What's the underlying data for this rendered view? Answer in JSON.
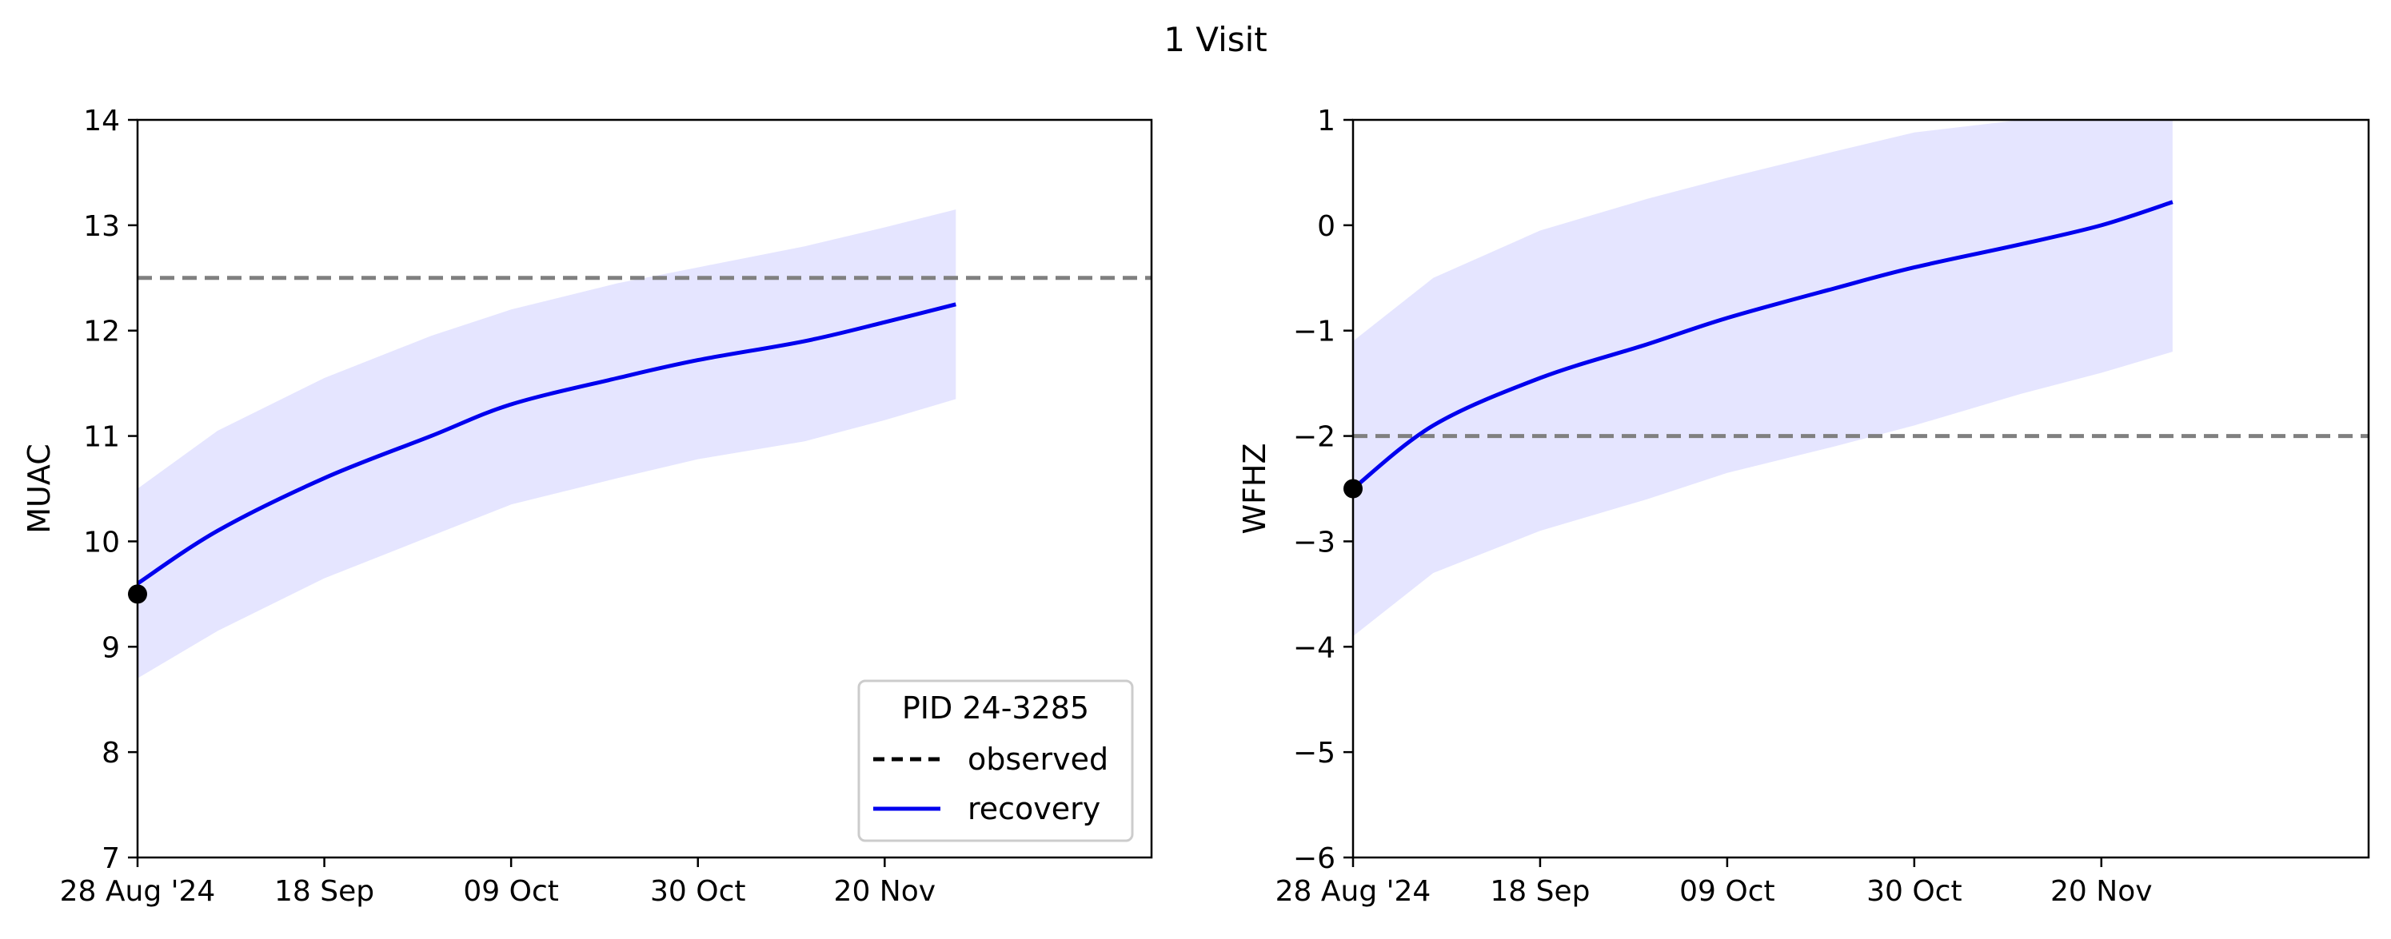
{
  "title": "1 Visit",
  "chart_data": [
    {
      "type": "line",
      "ylabel": "MUAC",
      "xlabel": "",
      "xlim": [
        "2024-08-28",
        "2024-12-20"
      ],
      "ylim": [
        7,
        14
      ],
      "xticks": [
        "2024-08-28",
        "2024-09-18",
        "2024-10-09",
        "2024-10-30",
        "2024-11-20"
      ],
      "xtick_labels": [
        "28 Aug '24",
        "18 Sep",
        "09 Oct",
        "30 Oct",
        "20 Nov"
      ],
      "yticks": [
        7,
        8,
        9,
        10,
        11,
        12,
        13,
        14
      ],
      "ytick_labels": [
        "7",
        "8",
        "9",
        "10",
        "11",
        "12",
        "13",
        "14"
      ],
      "threshold": {
        "y": 12.5,
        "style": "dashed",
        "color": "#808080"
      },
      "observed": [
        {
          "x": "2024-08-28",
          "y": 9.5
        }
      ],
      "recovery": {
        "color": "#0000ee",
        "x": [
          "2024-08-28",
          "2024-09-06",
          "2024-09-18",
          "2024-09-30",
          "2024-10-09",
          "2024-10-21",
          "2024-10-30",
          "2024-11-11",
          "2024-11-20",
          "2024-11-28"
        ],
        "y": [
          9.6,
          10.1,
          10.6,
          11.0,
          11.3,
          11.55,
          11.72,
          11.9,
          12.08,
          12.25
        ],
        "band_low": [
          8.7,
          9.15,
          9.65,
          10.05,
          10.35,
          10.6,
          10.78,
          10.95,
          11.15,
          11.35
        ],
        "band_high": [
          10.5,
          11.05,
          11.55,
          11.95,
          12.2,
          12.45,
          12.6,
          12.8,
          12.98,
          13.15
        ]
      },
      "band_color": "#e5e5ff",
      "legend": {
        "title": "PID 24-3285",
        "placement": "lower-right",
        "entries": [
          "observed",
          "recovery"
        ]
      }
    },
    {
      "type": "line",
      "ylabel": "WFHZ",
      "xlabel": "",
      "xlim": [
        "2024-08-28",
        "2024-12-20"
      ],
      "ylim": [
        -6,
        1
      ],
      "xticks": [
        "2024-08-28",
        "2024-09-18",
        "2024-10-09",
        "2024-10-30",
        "2024-11-20"
      ],
      "xtick_labels": [
        "28 Aug '24",
        "18 Sep",
        "09 Oct",
        "30 Oct",
        "20 Nov"
      ],
      "yticks": [
        -6,
        -5,
        -4,
        -3,
        -2,
        -1,
        0,
        1
      ],
      "ytick_labels": [
        "−6",
        "−5",
        "−4",
        "−3",
        "−2",
        "−1",
        "0",
        "1"
      ],
      "threshold": {
        "y": -2,
        "style": "dashed",
        "color": "#808080"
      },
      "observed": [
        {
          "x": "2024-08-28",
          "y": -2.5
        }
      ],
      "recovery": {
        "color": "#0000ee",
        "x": [
          "2024-08-28",
          "2024-09-06",
          "2024-09-18",
          "2024-09-30",
          "2024-10-09",
          "2024-10-21",
          "2024-10-30",
          "2024-11-11",
          "2024-11-20",
          "2024-11-28"
        ],
        "y": [
          -2.5,
          -1.9,
          -1.45,
          -1.13,
          -0.88,
          -0.6,
          -0.4,
          -0.18,
          0.0,
          0.22
        ],
        "band_low": [
          -3.9,
          -3.3,
          -2.9,
          -2.6,
          -2.35,
          -2.1,
          -1.9,
          -1.6,
          -1.4,
          -1.2
        ],
        "band_high": [
          -1.1,
          -0.5,
          -0.05,
          0.25,
          0.45,
          0.7,
          0.88,
          1.0,
          1.0,
          1.0
        ]
      },
      "band_color": "#e5e5ff"
    }
  ]
}
